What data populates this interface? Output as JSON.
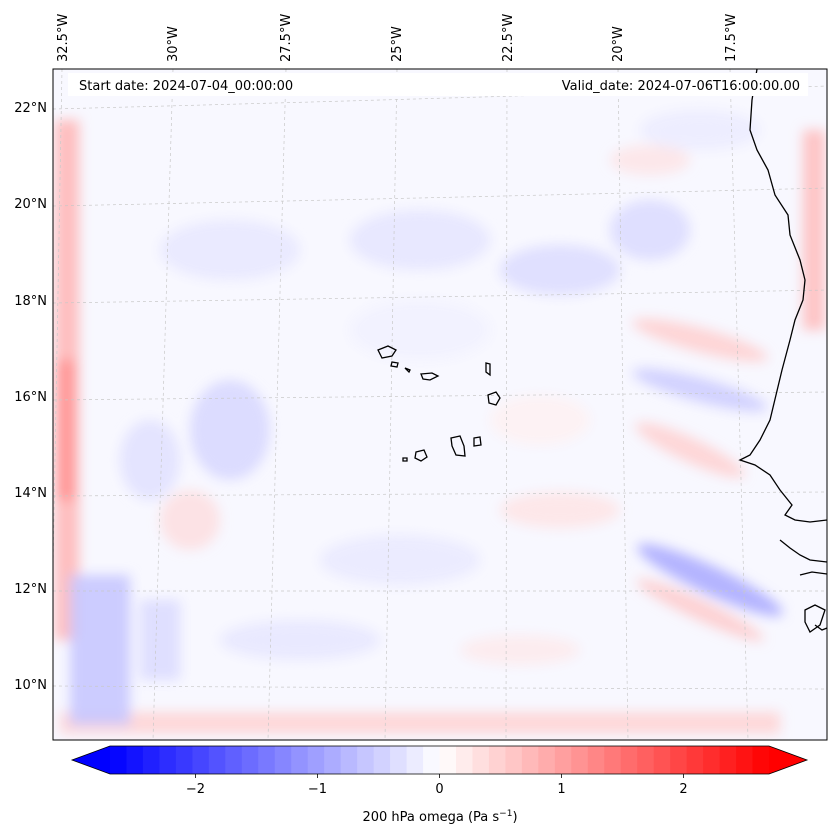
{
  "map": {
    "start_label": "Start date: 2024-07-04_00:00:00",
    "valid_label": "Valid_date: 2024-07-06T16:00:00.00",
    "lon_labels": [
      "32.5°W",
      "30°W",
      "27.5°W",
      "25°W",
      "22.5°W",
      "20°W",
      "17.5°W"
    ],
    "lat_labels": [
      "22°N",
      "20°N",
      "18°N",
      "16°N",
      "14°N",
      "12°N",
      "10°N"
    ],
    "colorbar": {
      "ticks": [
        "−2",
        "−1",
        "0",
        "1",
        "2"
      ],
      "label": "200 hPa omega (Pa s",
      "label_sup": "−1",
      "label_end": ")",
      "vmin": -2.7,
      "vmax": 2.7,
      "color_low": "#0000ff",
      "color_mid": "#ffffff",
      "color_high": "#ff0000"
    }
  }
}
